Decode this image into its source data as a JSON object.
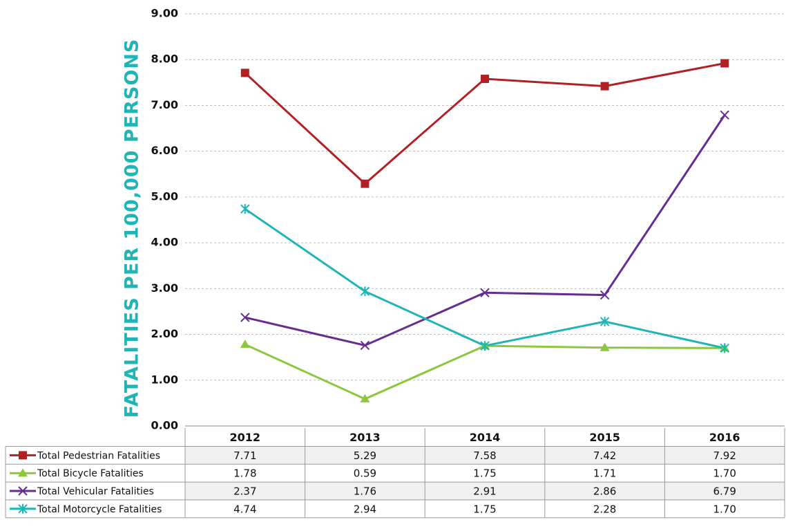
{
  "chart_data": {
    "type": "line",
    "y_axis_label": "FATALITIES PER 100,000 PERSONS",
    "categories": [
      "2012",
      "2013",
      "2014",
      "2015",
      "2016"
    ],
    "ylim": [
      0,
      9
    ],
    "yticks": [
      {
        "value": 0,
        "label": "0.00"
      },
      {
        "value": 1,
        "label": "1.00"
      },
      {
        "value": 2,
        "label": "2.00"
      },
      {
        "value": 3,
        "label": "3.00"
      },
      {
        "value": 4,
        "label": "4.00"
      },
      {
        "value": 5,
        "label": "5.00"
      },
      {
        "value": 6,
        "label": "6.00"
      },
      {
        "value": 7,
        "label": "7.00"
      },
      {
        "value": 8,
        "label": "8.00"
      },
      {
        "value": 9,
        "label": "9.00"
      }
    ],
    "grid": true,
    "series": [
      {
        "name": "Total Pedestrian Fatalities",
        "color": "#b22024",
        "marker": "square",
        "values": [
          7.71,
          5.29,
          7.58,
          7.42,
          7.92
        ],
        "value_labels": [
          "7.71",
          "5.29",
          "7.58",
          "7.42",
          "7.92"
        ]
      },
      {
        "name": "Total Bicycle Fatalities",
        "color": "#8dc63f",
        "marker": "triangle",
        "values": [
          1.78,
          0.59,
          1.75,
          1.71,
          1.7
        ],
        "value_labels": [
          "1.78",
          "0.59",
          "1.75",
          "1.71",
          "1.70"
        ]
      },
      {
        "name": "Total Vehicular Fatalities",
        "color": "#652d90",
        "marker": "x",
        "values": [
          2.37,
          1.76,
          2.91,
          2.86,
          6.79
        ],
        "value_labels": [
          "2.37",
          "1.76",
          "2.91",
          "2.86",
          "6.79"
        ]
      },
      {
        "name": "Total Motorcycle Fatalities",
        "color": "#1fb5b5",
        "marker": "star",
        "values": [
          4.74,
          2.94,
          1.75,
          2.28,
          1.7
        ],
        "value_labels": [
          "4.74",
          "2.94",
          "1.75",
          "2.28",
          "1.70"
        ]
      }
    ]
  }
}
